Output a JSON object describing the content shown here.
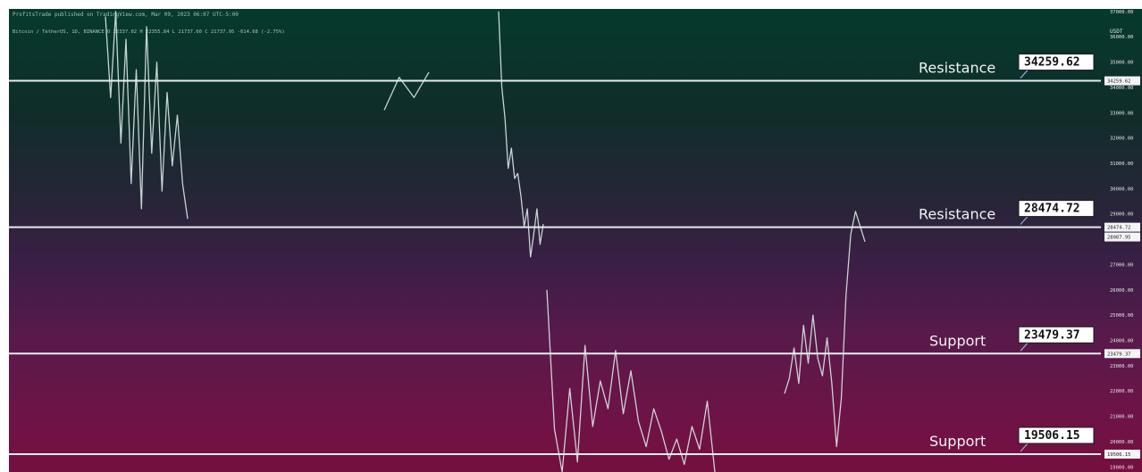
{
  "header": {
    "line1": "ProfitsTrade published on TradingView.com, Mar 09, 2023 06:07 UTC-5:00",
    "line2": "Bitcoin / TetherUS, 1D, BINANCE  O 22337.02  H 22355.84  L 21737.00  C 21737.95  -614.68 (-2.75%)"
  },
  "scale_label": "USDT",
  "chart_data": {
    "type": "line",
    "title": "",
    "xlabel": "",
    "ylabel": "",
    "ylim": [
      18800,
      37100
    ],
    "series": [
      {
        "values": [
          36800,
          33600,
          37000,
          31800,
          35900,
          30200,
          34700,
          29200,
          36400,
          31400,
          35000,
          29900,
          33800,
          30900,
          32900,
          30200,
          28800,
          33100,
          34400,
          33600,
          34600,
          37000,
          34000,
          32800,
          30800,
          31600,
          30400,
          30600,
          29700,
          28500,
          29200,
          27300,
          28200,
          29200,
          27800,
          28600,
          26000,
          20500,
          18800,
          22100,
          19200,
          23800,
          20600,
          22400,
          21300,
          23600,
          21100,
          22800,
          20800,
          19800,
          21300,
          20400,
          19300,
          20100,
          19100,
          20600,
          19700,
          21600,
          18800,
          21900,
          22500,
          23700,
          22300,
          24600,
          23100,
          25000,
          23300,
          22600,
          24100,
          22300,
          19800,
          21700,
          25800,
          28200,
          29100,
          28500,
          27900
        ]
      }
    ],
    "levels": [
      {
        "label": "Resistance",
        "value": 34259.62
      },
      {
        "label": "Resistance",
        "value": 28474.72
      },
      {
        "label": "Support",
        "value": 23479.37
      },
      {
        "label": "Support",
        "value": 19506.15
      }
    ],
    "y_ticks": [
      37000,
      36000,
      35000,
      34000,
      33000,
      32000,
      31000,
      30000,
      29000,
      28000,
      27000,
      26000,
      25000,
      24000,
      23000,
      22000,
      21000,
      20000,
      19000
    ],
    "price_tags": [
      34259.62,
      28474.72,
      28087.95,
      23479.37,
      19506.15
    ],
    "grid": false,
    "legend": "none"
  }
}
